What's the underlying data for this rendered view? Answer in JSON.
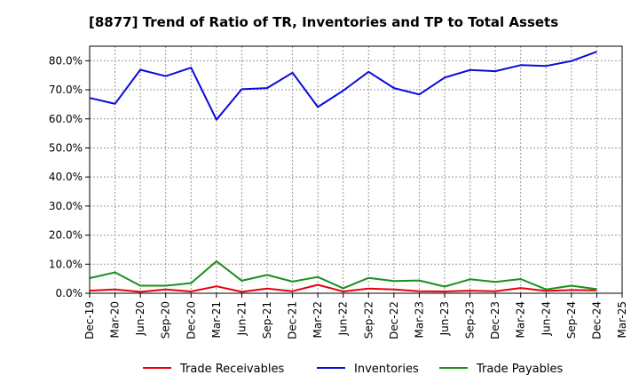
{
  "chart_data": {
    "type": "line",
    "title": "[8877]  Trend of Ratio of TR, Inventories and TP to Total Assets",
    "xlabel": "",
    "ylabel": "",
    "x_tick_labels": [
      "Dec-19",
      "Mar-20",
      "Jun-20",
      "Sep-20",
      "Dec-20",
      "Mar-21",
      "Jun-21",
      "Sep-21",
      "Dec-21",
      "Mar-22",
      "Jun-22",
      "Sep-22",
      "Dec-22",
      "Mar-23",
      "Jun-23",
      "Sep-23",
      "Dec-23",
      "Mar-24",
      "Jun-24",
      "Sep-24",
      "Dec-24",
      "Mar-25"
    ],
    "y_tick_labels": [
      "0.0%",
      "10.0%",
      "20.0%",
      "30.0%",
      "40.0%",
      "50.0%",
      "60.0%",
      "70.0%",
      "80.0%"
    ],
    "ylim": [
      0,
      80
    ],
    "y_unit": "%",
    "grid": true,
    "legend_position": "bottom",
    "categories": [
      "Dec-19",
      "Mar-20",
      "Jun-20",
      "Sep-20",
      "Dec-20",
      "Mar-21",
      "Jun-21",
      "Sep-21",
      "Dec-21",
      "Mar-22",
      "Jun-22",
      "Sep-22",
      "Dec-22",
      "Mar-23",
      "Jun-23",
      "Sep-23",
      "Dec-23",
      "Mar-24",
      "Jun-24",
      "Sep-24",
      "Dec-24"
    ],
    "series": [
      {
        "name": "Trade Receivables",
        "color": "#e8000b",
        "values": [
          0.9,
          1.3,
          0.5,
          1.3,
          0.6,
          2.4,
          0.5,
          1.6,
          0.7,
          2.9,
          0.6,
          1.6,
          1.3,
          0.7,
          0.6,
          0.9,
          0.7,
          1.8,
          0.8,
          1.1,
          1.0
        ]
      },
      {
        "name": "Inventories",
        "color": "#0a0adb",
        "values": [
          67.2,
          65.2,
          76.9,
          74.7,
          77.6,
          59.7,
          70.2,
          70.6,
          75.9,
          64.1,
          69.7,
          76.2,
          70.6,
          68.4,
          74.2,
          76.8,
          76.4,
          78.5,
          78.2,
          79.9,
          83.1
        ]
      },
      {
        "name": "Trade Payables",
        "color": "#1a8f1a",
        "values": [
          5.2,
          7.2,
          2.6,
          2.6,
          3.5,
          11.0,
          4.3,
          6.3,
          4.0,
          5.6,
          1.7,
          5.3,
          4.2,
          4.4,
          2.3,
          4.8,
          3.9,
          4.9,
          1.3,
          2.6,
          1.4
        ]
      }
    ]
  }
}
